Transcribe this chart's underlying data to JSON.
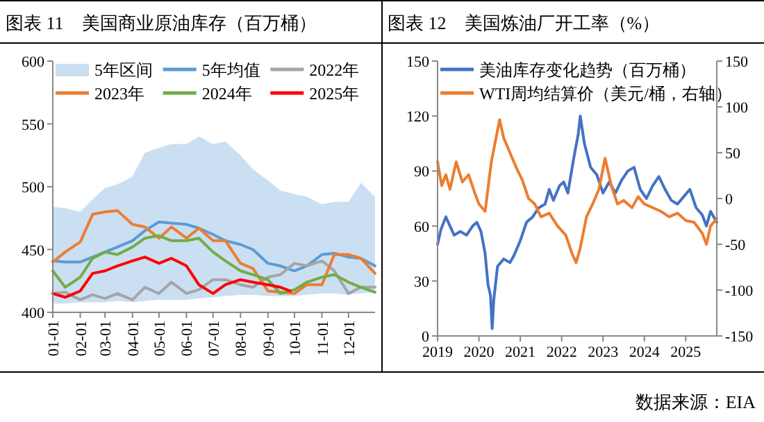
{
  "chart_data": [
    {
      "type": "line",
      "title": "图表 11　美国商业原油库存（百万桶）",
      "legend": "top",
      "annotations": [
        "5年区间"
      ],
      "x": [
        "--01-01",
        "--01-15",
        "--02-01",
        "--02-15",
        "--03-01",
        "--03-15",
        "--04-01",
        "--04-15",
        "--05-01",
        "--05-15",
        "--06-01",
        "--06-15",
        "--07-01",
        "--07-15",
        "--08-01",
        "--08-15",
        "--09-01",
        "--09-15",
        "--10-01",
        "--10-15",
        "--11-01",
        "--11-15",
        "--12-01",
        "--12-15",
        "--12-31"
      ],
      "xlim": [
        "--01-01",
        "--12-31"
      ],
      "xticks": [
        {
          "value": "--01-01",
          "label": "01-01"
        },
        {
          "value": "--02-01",
          "label": "02-01"
        },
        {
          "value": "--03-01",
          "label": "03-01"
        },
        {
          "value": "--04-01",
          "label": "04-01"
        },
        {
          "value": "--05-01",
          "label": "05-01"
        },
        {
          "value": "--06-01",
          "label": "06-01"
        },
        {
          "value": "--07-01",
          "label": "07-01"
        },
        {
          "value": "--08-01",
          "label": "08-01"
        },
        {
          "value": "--09-01",
          "label": "09-01"
        },
        {
          "value": "--10-01",
          "label": "10-01"
        },
        {
          "value": "--11-01",
          "label": "11-01"
        },
        {
          "value": "--12-01",
          "label": "12-01"
        }
      ],
      "ylim": [
        400,
        600
      ],
      "yticks": [
        400,
        450,
        500,
        550,
        600
      ],
      "series": [
        {
          "name": "5年均值",
          "type": "line",
          "color": "#5b9bd5",
          "values": [
            441,
            440,
            440,
            444,
            448,
            452,
            457,
            465,
            472,
            471,
            470,
            467,
            462,
            457,
            454,
            450,
            439,
            437,
            433,
            437,
            446,
            447,
            444,
            443,
            437
          ],
          "lower": [
            407,
            407,
            408,
            408,
            408,
            409,
            408,
            409,
            410,
            410,
            410,
            411,
            412,
            413,
            414,
            414,
            413,
            413,
            413,
            414,
            415,
            415,
            414,
            415,
            416
          ],
          "upper": [
            484,
            483,
            480,
            490,
            499,
            502,
            508,
            527,
            531,
            534,
            534,
            540,
            534,
            536,
            525,
            514,
            505,
            497,
            494,
            492,
            486,
            488,
            488,
            503,
            492
          ]
        },
        {
          "name": "2022年",
          "type": "line",
          "color": "#a5a5a5",
          "values": [
            415,
            416,
            410,
            414,
            411,
            415,
            410,
            420,
            415,
            424,
            415,
            418,
            426,
            426,
            422,
            420,
            428,
            430,
            439,
            437,
            441,
            433,
            415,
            420,
            420
          ]
        },
        {
          "name": "2023年",
          "type": "line",
          "color": "#ed7d31",
          "values": [
            440,
            448,
            456,
            478,
            480,
            481,
            470,
            468,
            459,
            468,
            459,
            467,
            457,
            457,
            439,
            435,
            417,
            416,
            415,
            422,
            422,
            446,
            446,
            443,
            431
          ]
        },
        {
          "name": "2024年",
          "type": "line",
          "color": "#70ad47",
          "values": [
            433,
            420,
            428,
            443,
            448,
            446,
            452,
            459,
            461,
            457,
            457,
            459,
            448,
            441,
            433,
            430,
            426,
            415,
            418,
            424,
            428,
            430,
            424,
            420,
            416
          ]
        },
        {
          "name": "2025年",
          "type": "line",
          "color": "#ff0000",
          "x": [
            "--01-01",
            "--01-15",
            "--02-01",
            "--02-15",
            "--03-01",
            "--03-15",
            "--04-01",
            "--04-15",
            "--05-01",
            "--05-15",
            "--06-01",
            "--06-15",
            "--07-01",
            "--07-15",
            "--08-01",
            "--08-15",
            "--09-01",
            "--09-15",
            "--09-26"
          ],
          "values": [
            415,
            412,
            417,
            431,
            433,
            437,
            441,
            444,
            439,
            443,
            437,
            422,
            415,
            422,
            426,
            424,
            422,
            420,
            417
          ]
        }
      ]
    },
    {
      "type": "line",
      "title": "图表 12　美国炼油厂开工率（%）",
      "legend": "top left",
      "xlim": [
        2019,
        2025.75
      ],
      "xticks": [
        2019,
        2020,
        2021,
        2022,
        2023,
        2024,
        2025
      ],
      "ylim": [
        0,
        150
      ],
      "yticks": [
        0,
        30,
        60,
        90,
        120,
        150
      ],
      "y2lim": [
        -150,
        150
      ],
      "y2ticks": [
        -150,
        -100,
        -50,
        0,
        50,
        100,
        150
      ],
      "annotations": [
        "数据来源：EIA"
      ],
      "series": [
        {
          "name": "美油库存变化趋势（百万桶）",
          "color": "#4472c4",
          "x": [
            2019.0,
            2019.08,
            2019.2,
            2019.3,
            2019.4,
            2019.55,
            2019.7,
            2019.85,
            2019.95,
            2020.05,
            2020.15,
            2020.22,
            2020.28,
            2020.32,
            2020.36,
            2020.45,
            2020.6,
            2020.75,
            2020.85,
            2021.0,
            2021.15,
            2021.3,
            2021.45,
            2021.6,
            2021.7,
            2021.8,
            2021.95,
            2022.05,
            2022.15,
            2022.3,
            2022.4,
            2022.45,
            2022.55,
            2022.7,
            2022.85,
            2023.0,
            2023.15,
            2023.3,
            2023.45,
            2023.6,
            2023.75,
            2023.9,
            2024.05,
            2024.2,
            2024.35,
            2024.5,
            2024.65,
            2024.8,
            2024.95,
            2025.1,
            2025.25,
            2025.4,
            2025.5,
            2025.6,
            2025.7,
            2025.75
          ],
          "values": [
            50,
            58,
            65,
            60,
            55,
            57,
            55,
            60,
            62,
            57,
            45,
            28,
            22,
            4,
            20,
            38,
            42,
            40,
            44,
            52,
            62,
            65,
            70,
            72,
            80,
            74,
            82,
            84,
            78,
            98,
            110,
            120,
            105,
            92,
            88,
            78,
            84,
            78,
            85,
            90,
            92,
            80,
            75,
            82,
            87,
            80,
            74,
            72,
            76,
            80,
            70,
            66,
            60,
            68,
            64,
            62
          ]
        },
        {
          "name": "WTI周均结算价（美元/桶，右轴）",
          "color": "#ed7d31",
          "axis": "y2",
          "x": [
            2019.0,
            2019.1,
            2019.2,
            2019.3,
            2019.45,
            2019.6,
            2019.75,
            2019.9,
            2020.0,
            2020.15,
            2020.3,
            2020.5,
            2020.6,
            2020.75,
            2020.9,
            2021.05,
            2021.2,
            2021.35,
            2021.5,
            2021.7,
            2021.9,
            2022.1,
            2022.25,
            2022.35,
            2022.45,
            2022.6,
            2022.75,
            2022.9,
            2023.05,
            2023.2,
            2023.35,
            2023.5,
            2023.7,
            2023.85,
            2024.0,
            2024.2,
            2024.4,
            2024.6,
            2024.8,
            2025.0,
            2025.2,
            2025.4,
            2025.5,
            2025.6,
            2025.75
          ],
          "values": [
            40,
            14,
            26,
            10,
            40,
            18,
            26,
            6,
            -6,
            -14,
            40,
            86,
            66,
            50,
            34,
            20,
            0,
            -6,
            -20,
            -16,
            -30,
            -40,
            -60,
            -70,
            -54,
            -20,
            -6,
            10,
            44,
            14,
            -6,
            -2,
            -10,
            2,
            -6,
            -10,
            -14,
            -20,
            -16,
            -24,
            -26,
            -38,
            -50,
            -30,
            -22
          ]
        }
      ]
    }
  ]
}
